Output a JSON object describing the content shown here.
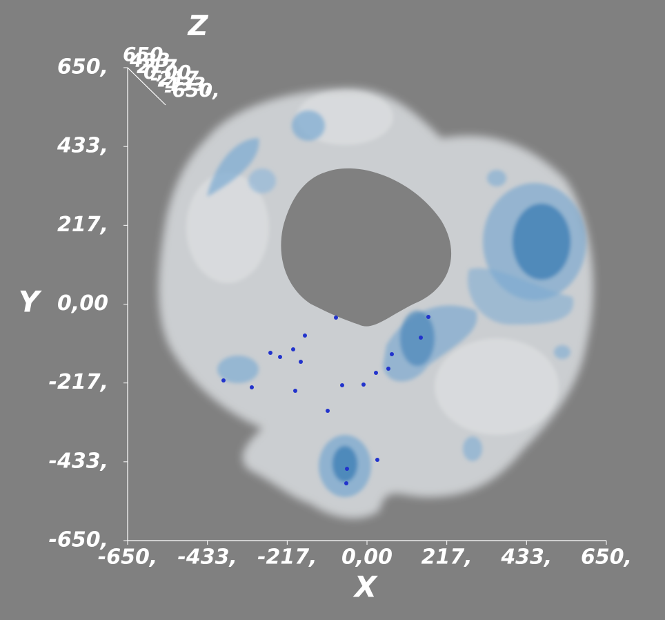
{
  "axes": {
    "x_label": "X",
    "y_label": "Y",
    "z_label": "Z",
    "x_ticks": [
      "-650,",
      "-433,",
      "-217,",
      "0,00",
      "217,",
      "433,",
      "650,"
    ],
    "y_ticks": [
      "650,",
      "433,",
      "217,",
      "0,00",
      "-217,",
      "-433,",
      "-650,"
    ],
    "z_ticks": [
      "650,",
      "433,",
      "217,",
      "0,00",
      "-217,",
      "-433,",
      "-650,"
    ]
  }
}
